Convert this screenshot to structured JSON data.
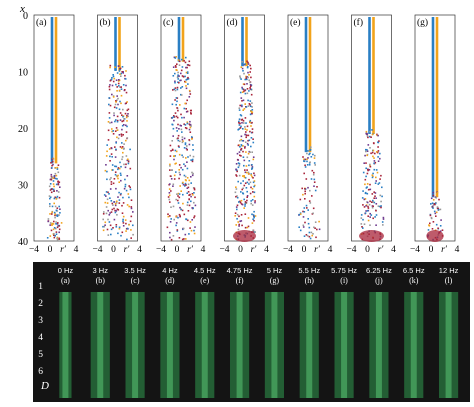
{
  "top_panel": {
    "axis_symbol": "x",
    "y_ticks": [
      "0",
      "10",
      "20",
      "30",
      "40"
    ],
    "x_tick_left": "−4",
    "x_tick_mid": "0",
    "x_var": "r′",
    "x_tick_right": "4",
    "panels": [
      {
        "label": "(a)",
        "turb_start": 0.63,
        "spread": 0.16,
        "density": 0.9,
        "bottom_dense": false
      },
      {
        "label": "(b)",
        "turb_start": 0.22,
        "spread": 0.34,
        "density": 1.0,
        "bottom_dense": false
      },
      {
        "label": "(c)",
        "turb_start": 0.18,
        "spread": 0.32,
        "density": 1.0,
        "bottom_dense": false
      },
      {
        "label": "(d)",
        "turb_start": 0.2,
        "spread": 0.24,
        "density": 1.0,
        "bottom_dense": true
      },
      {
        "label": "(e)",
        "turb_start": 0.58,
        "spread": 0.24,
        "density": 0.55,
        "bottom_dense": false
      },
      {
        "label": "(f)",
        "turb_start": 0.5,
        "spread": 0.26,
        "density": 0.85,
        "bottom_dense": true
      },
      {
        "label": "(g)",
        "turb_start": 0.78,
        "spread": 0.18,
        "density": 0.7,
        "bottom_dense": true
      }
    ],
    "colors": {
      "blue": "#2a7fc4",
      "orange": "#f2a31b",
      "red": "#a8243a",
      "purple": "#6e3a8e",
      "grey": "#9a9a9a"
    }
  },
  "bottom_panel": {
    "y_ticks": [
      "1",
      "2",
      "3",
      "4",
      "5",
      "6"
    ],
    "y_symbol": "D",
    "frames": [
      {
        "freq": "0 Hz",
        "label": "(a)"
      },
      {
        "freq": "3 Hz",
        "label": "(b)"
      },
      {
        "freq": "3.5 Hz",
        "label": "(c)"
      },
      {
        "freq": "4 Hz",
        "label": "(d)"
      },
      {
        "freq": "4.5 Hz",
        "label": "(e)"
      },
      {
        "freq": "4.75 Hz",
        "label": "(f)"
      },
      {
        "freq": "5 Hz",
        "label": "(g)"
      },
      {
        "freq": "5.5 Hz",
        "label": "(h)"
      },
      {
        "freq": "5.75 Hz",
        "label": "(i)"
      },
      {
        "freq": "6.25 Hz",
        "label": "(j)"
      },
      {
        "freq": "6.5 Hz",
        "label": "(k)"
      },
      {
        "freq": "12 Hz",
        "label": "(l)"
      }
    ],
    "colors": {
      "background": "#141414",
      "jet": "#2f9a4e",
      "jet_bright": "#5fd07a"
    }
  }
}
